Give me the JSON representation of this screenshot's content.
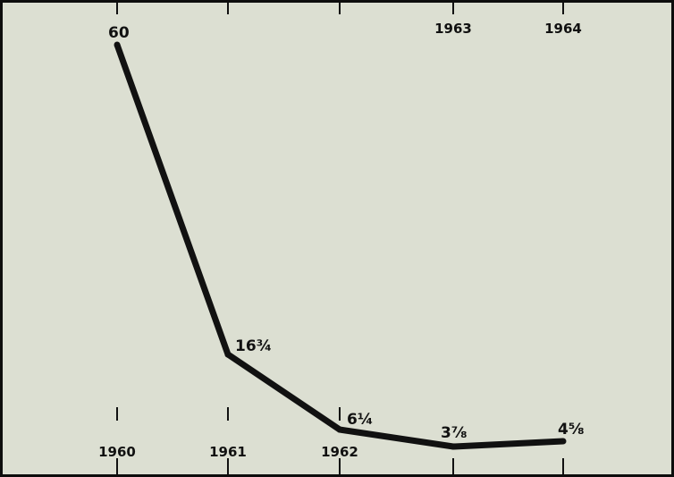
{
  "chart_data": {
    "type": "line",
    "title": "",
    "xlabel": "",
    "ylabel": "",
    "categories": [
      "1960",
      "1961",
      "1962",
      "1963",
      "1964"
    ],
    "values": [
      60,
      16.75,
      6.25,
      3.875,
      4.625
    ],
    "data_labels": [
      "60",
      "16¾",
      "6¼",
      "3⅞",
      "4⅝"
    ],
    "ylim": [
      3.5,
      60
    ],
    "grid": false,
    "legend": "none",
    "colors": {
      "panel": "#dcdfd2",
      "line": "#111111",
      "border": "#0d0d0d"
    }
  }
}
